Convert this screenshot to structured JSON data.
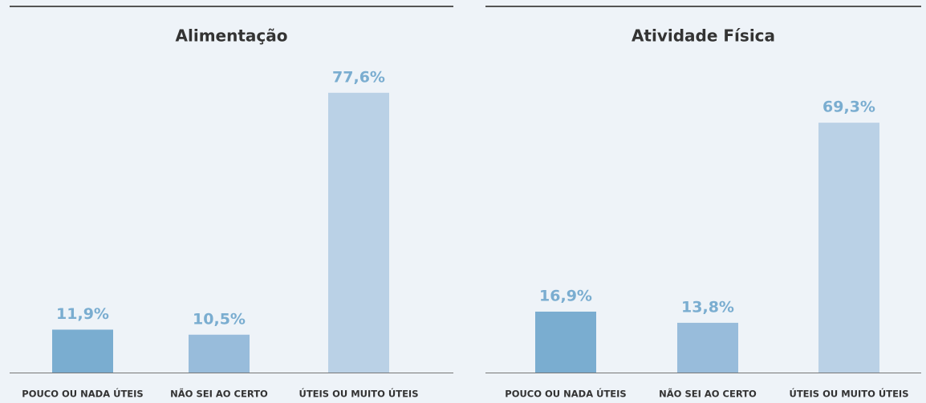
{
  "chart_data": [
    {
      "type": "bar",
      "title": "Alimentação",
      "categories": [
        "POUCO OU NADA ÚTEIS",
        "NÃO SEI AO CERTO",
        "ÚTEIS OU MUITO ÚTEIS"
      ],
      "values": [
        11.9,
        10.5,
        77.6
      ],
      "value_labels": [
        "11,9%",
        "10,5%",
        "77,6%"
      ],
      "colors": [
        "#7aadd0",
        "#98bcdb",
        "#bad1e6"
      ]
    },
    {
      "type": "bar",
      "title": "Atividade Física",
      "categories": [
        "POUCO OU NADA ÚTEIS",
        "NÃO SEI AO CERTO",
        "ÚTEIS OU MUITO ÚTEIS"
      ],
      "values": [
        16.9,
        13.8,
        69.3
      ],
      "value_labels": [
        "16,9%",
        "13,8%",
        "69,3%"
      ],
      "colors": [
        "#7aadd0",
        "#98bcdb",
        "#bad1e6"
      ]
    }
  ]
}
